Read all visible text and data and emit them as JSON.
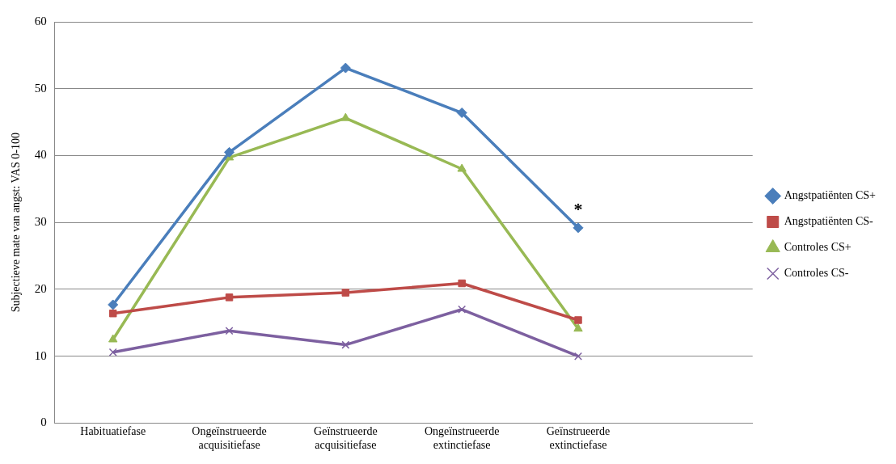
{
  "chart_data": {
    "type": "line",
    "ylabel": "Subjectieve mate van angst: VAS 0-100",
    "categories": [
      "Habituatiefase",
      "Ongeïnstrueerde acquisitiefase",
      "Geïnstrueerde acquisitiefase",
      "Ongeïnstrueerde extinctiefase",
      "Geïnstrueerde extinctiefase",
      null
    ],
    "series": [
      {
        "name": "Angstpatiënten CS+",
        "color": "#4a7ebb",
        "marker": "diamond",
        "values": [
          17.7,
          40.5,
          53.1,
          46.4,
          29.2,
          null
        ]
      },
      {
        "name": "Angstpatiënten CS-",
        "color": "#be4b48",
        "marker": "square",
        "values": [
          16.4,
          18.8,
          19.5,
          20.9,
          15.4,
          null
        ]
      },
      {
        "name": "Controles CS+",
        "color": "#98b954",
        "marker": "triangle",
        "values": [
          12.5,
          39.7,
          45.6,
          38.0,
          14.1,
          null
        ]
      },
      {
        "name": "Controles CS-",
        "color": "#7d60a0",
        "marker": "cross",
        "values": [
          10.6,
          13.8,
          11.7,
          17.0,
          10.0,
          null
        ]
      }
    ],
    "ylim": [
      0,
      60
    ],
    "yticks": [
      0,
      10,
      20,
      30,
      40,
      50,
      60
    ],
    "grid": "y",
    "legend": "right",
    "annotations": [
      {
        "text": "*",
        "x": "Geïnstrueerde extinctiefase",
        "y": 29.2
      }
    ]
  }
}
